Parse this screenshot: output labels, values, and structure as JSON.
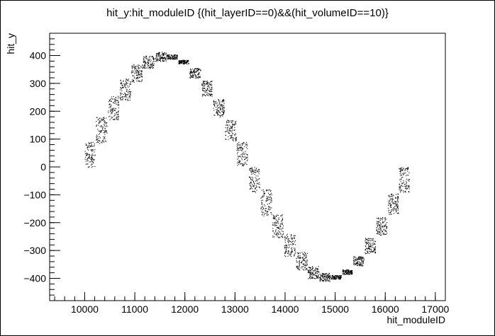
{
  "chart_data": {
    "type": "scatter",
    "title": "hit_y:hit_moduleID {(hit_layerID==0)&&(hit_volumeID==10)}",
    "xlabel": "hit_moduleID",
    "ylabel": "hit_y",
    "xlim": [
      9300,
      17200
    ],
    "ylim": [
      -480,
      480
    ],
    "x_ticks": [
      10000,
      11000,
      12000,
      13000,
      14000,
      15000,
      16000,
      17000
    ],
    "x_tick_labels": [
      "10000",
      "11000",
      "12000",
      "13000",
      "14000",
      "15000",
      "16000",
      "17000"
    ],
    "y_ticks": [
      -400,
      -300,
      -200,
      -100,
      0,
      100,
      200,
      300,
      400
    ],
    "y_tick_labels": [
      "−400",
      "−300",
      "−200",
      "−100",
      "0",
      "100",
      "200",
      "300",
      "400"
    ],
    "marker_color": "#000000",
    "series": [
      {
        "clusters": [
          {
            "x_min": 10000,
            "x_max": 10200,
            "y_min": 0,
            "y_max": 90
          },
          {
            "x_min": 10220,
            "x_max": 10440,
            "y_min": 85,
            "y_max": 180
          },
          {
            "x_min": 10460,
            "x_max": 10680,
            "y_min": 170,
            "y_max": 255
          },
          {
            "x_min": 10700,
            "x_max": 10920,
            "y_min": 240,
            "y_max": 320
          },
          {
            "x_min": 10930,
            "x_max": 11150,
            "y_min": 305,
            "y_max": 370
          },
          {
            "x_min": 11160,
            "x_max": 11380,
            "y_min": 355,
            "y_max": 400
          },
          {
            "x_min": 11400,
            "x_max": 11620,
            "y_min": 380,
            "y_max": 415
          },
          {
            "x_min": 11630,
            "x_max": 11850,
            "y_min": 388,
            "y_max": 404
          },
          {
            "x_min": 11870,
            "x_max": 12070,
            "y_min": 370,
            "y_max": 385
          },
          {
            "x_min": 12090,
            "x_max": 12310,
            "y_min": 320,
            "y_max": 355
          },
          {
            "x_min": 12330,
            "x_max": 12540,
            "y_min": 255,
            "y_max": 310
          },
          {
            "x_min": 12560,
            "x_max": 12780,
            "y_min": 180,
            "y_max": 245
          },
          {
            "x_min": 12800,
            "x_max": 13020,
            "y_min": 95,
            "y_max": 170
          },
          {
            "x_min": 13030,
            "x_max": 13250,
            "y_min": 5,
            "y_max": 90
          },
          {
            "x_min": 13270,
            "x_max": 13490,
            "y_min": -90,
            "y_max": 0
          },
          {
            "x_min": 13510,
            "x_max": 13730,
            "y_min": -175,
            "y_max": -80
          },
          {
            "x_min": 13740,
            "x_max": 13960,
            "y_min": -255,
            "y_max": -170
          },
          {
            "x_min": 13980,
            "x_max": 14200,
            "y_min": -320,
            "y_max": -240
          },
          {
            "x_min": 14220,
            "x_max": 14440,
            "y_min": -370,
            "y_max": -305
          },
          {
            "x_min": 14450,
            "x_max": 14670,
            "y_min": -400,
            "y_max": -355
          },
          {
            "x_min": 14680,
            "x_max": 14900,
            "y_min": -410,
            "y_max": -380
          },
          {
            "x_min": 14920,
            "x_max": 15120,
            "y_min": -402,
            "y_max": -388
          },
          {
            "x_min": 15140,
            "x_max": 15340,
            "y_min": -385,
            "y_max": -368
          },
          {
            "x_min": 15360,
            "x_max": 15570,
            "y_min": -355,
            "y_max": -320
          },
          {
            "x_min": 15590,
            "x_max": 15800,
            "y_min": -310,
            "y_max": -255
          },
          {
            "x_min": 15820,
            "x_max": 16030,
            "y_min": -245,
            "y_max": -180
          },
          {
            "x_min": 16050,
            "x_max": 16260,
            "y_min": -170,
            "y_max": -95
          },
          {
            "x_min": 16270,
            "x_max": 16480,
            "y_min": -90,
            "y_max": 0
          }
        ]
      }
    ]
  }
}
